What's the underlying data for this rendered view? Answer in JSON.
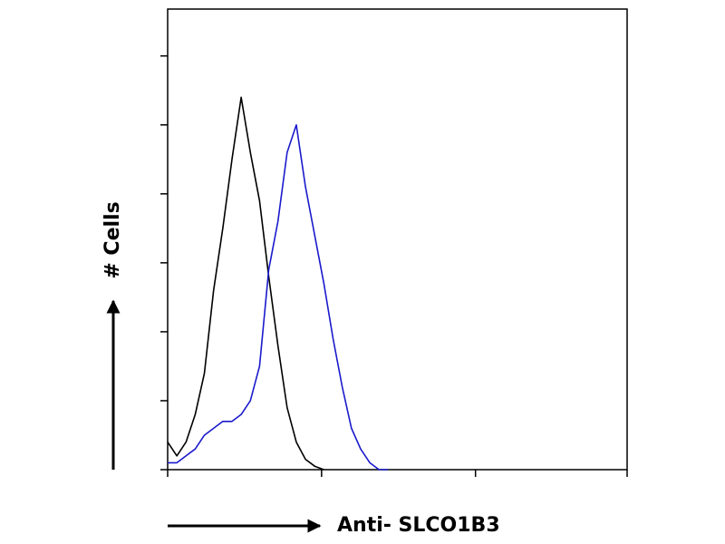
{
  "chart_data": {
    "type": "line",
    "ylabel": "# Cells",
    "xlabel": "Anti- SLCO1B3",
    "x": [
      0,
      2,
      4,
      6,
      8,
      10,
      12,
      14,
      16,
      18,
      20,
      22,
      24,
      26,
      28,
      30,
      32,
      34,
      36,
      38,
      40,
      42,
      44,
      46,
      48
    ],
    "series": [
      {
        "color": "#000000",
        "values": [
          0.4,
          0.2,
          0.4,
          0.8,
          1.4,
          2.6,
          3.5,
          4.5,
          5.4,
          4.6,
          3.9,
          2.8,
          1.8,
          0.9,
          0.4,
          0.15,
          0.05,
          0,
          null,
          null,
          null,
          null,
          null,
          null,
          null
        ]
      },
      {
        "color": "#1a1acc",
        "values": [
          0.1,
          0.1,
          0.2,
          0.3,
          0.5,
          0.6,
          0.7,
          0.7,
          0.8,
          1.0,
          1.5,
          2.9,
          3.6,
          4.6,
          5.0,
          4.1,
          3.4,
          2.7,
          1.9,
          1.2,
          0.6,
          0.3,
          0.1,
          0,
          0
        ]
      }
    ],
    "xlim": [
      0,
      100
    ],
    "xticks": [
      0,
      33.5,
      67,
      100
    ],
    "ylim": [
      0,
      6.68
    ],
    "yticks": [
      0,
      1,
      2,
      3,
      4,
      5,
      6
    ]
  }
}
